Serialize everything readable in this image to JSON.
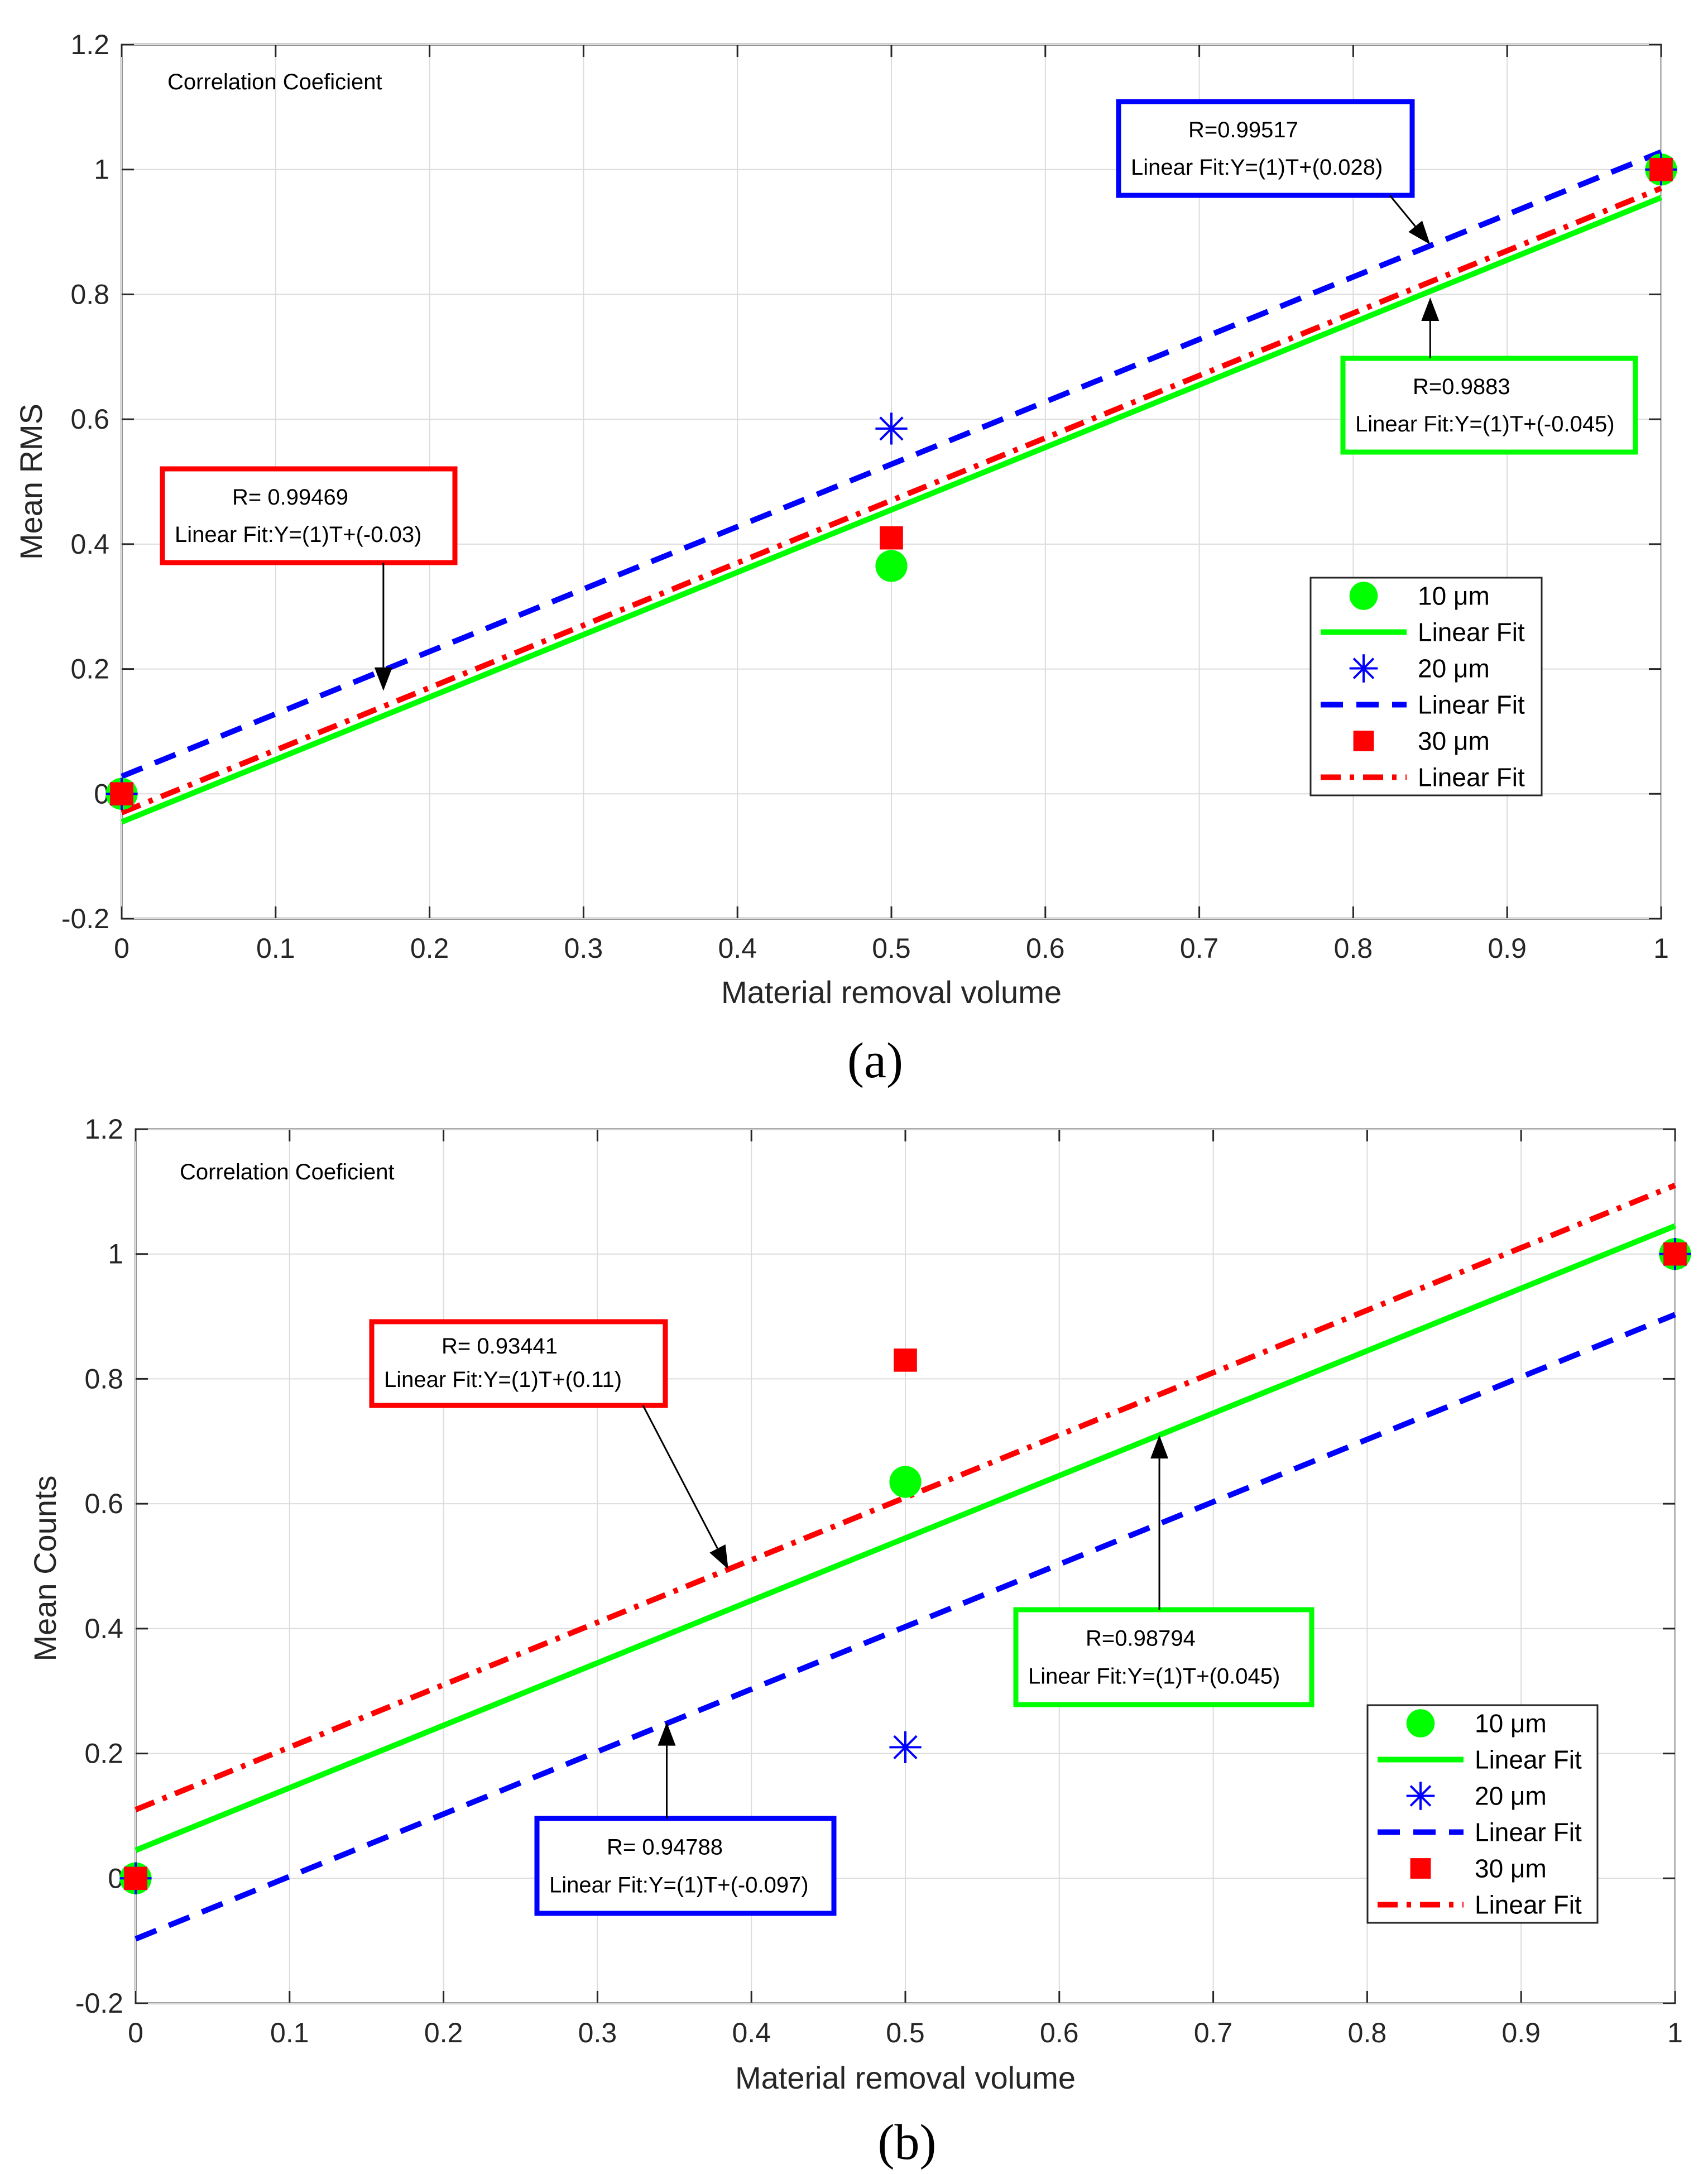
{
  "chart_data": [
    {
      "type": "scatter",
      "caption": "(a)",
      "title": "",
      "xlabel": "Material removal volume",
      "ylabel": "Mean RMS",
      "xlim": [
        0,
        1
      ],
      "ylim": [
        -0.2,
        1.2
      ],
      "grid": true,
      "xticks": [
        "0",
        "0.1",
        "0.2",
        "0.3",
        "0.4",
        "0.5",
        "0.6",
        "0.7",
        "0.8",
        "0.9",
        "1"
      ],
      "yticks": [
        "-0.2",
        "0",
        "0.2",
        "0.4",
        "0.6",
        "0.8",
        "1",
        "1.2"
      ],
      "corner_note": "Correlation Coeficient",
      "series": [
        {
          "name": "10 μm",
          "marker": "circle",
          "color": "#00ff00",
          "x": [
            0,
            0.5,
            1
          ],
          "y": [
            0,
            0.365,
            1
          ]
        },
        {
          "name": "20 μm",
          "marker": "asterisk",
          "color": "#0000ff",
          "x": [
            0,
            0.5,
            1
          ],
          "y": [
            0,
            0.585,
            1
          ]
        },
        {
          "name": "30 μm",
          "marker": "square",
          "color": "#ff0000",
          "x": [
            0,
            0.5,
            1
          ],
          "y": [
            0,
            0.41,
            1
          ]
        }
      ],
      "fits": [
        {
          "name": "Linear Fit",
          "color": "#00ff00",
          "dash": "solid",
          "slope": 1,
          "intercept": -0.045
        },
        {
          "name": "Linear Fit",
          "color": "#0000ff",
          "dash": "dashed",
          "slope": 1,
          "intercept": 0.028
        },
        {
          "name": "Linear Fit",
          "color": "#ff0000",
          "dash": "dashdot",
          "slope": 1,
          "intercept": -0.03
        }
      ],
      "annotations": [
        {
          "color": "#0000ff",
          "r": "R=0.99517",
          "fit": "Linear Fit:Y=(1)T+(0.028)",
          "arrow_to": [
            0.85,
            0.88
          ]
        },
        {
          "color": "#00ff00",
          "r": "R=0.9883",
          "fit": "Linear Fit:Y=(1)T+(-0.045)",
          "arrow_to": [
            0.85,
            0.795
          ]
        },
        {
          "color": "#ff0000",
          "r": "R= 0.99469",
          "fit": "Linear Fit:Y=(1)T+(-0.03)",
          "arrow_to": [
            0.17,
            0.165
          ]
        }
      ],
      "legend": {
        "position": "lower-right",
        "entries": [
          "10 μm",
          "Linear Fit",
          "20 μm",
          "Linear Fit",
          "30 μm",
          "Linear Fit"
        ]
      }
    },
    {
      "type": "scatter",
      "caption": "(b)",
      "title": "",
      "xlabel": "Material removal volume",
      "ylabel": "Mean Counts",
      "xlim": [
        0,
        1
      ],
      "ylim": [
        -0.2,
        1.2
      ],
      "grid": true,
      "xticks": [
        "0",
        "0.1",
        "0.2",
        "0.3",
        "0.4",
        "0.5",
        "0.6",
        "0.7",
        "0.8",
        "0.9",
        "1"
      ],
      "yticks": [
        "-0.2",
        "0",
        "0.2",
        "0.4",
        "0.6",
        "0.8",
        "1",
        "1.2"
      ],
      "corner_note": "Correlation Coeficient",
      "series": [
        {
          "name": "10 μm",
          "marker": "circle",
          "color": "#00ff00",
          "x": [
            0,
            0.5,
            1
          ],
          "y": [
            0,
            0.635,
            1
          ]
        },
        {
          "name": "20 μm",
          "marker": "asterisk",
          "color": "#0000ff",
          "x": [
            0,
            0.5,
            1
          ],
          "y": [
            0,
            0.21,
            1
          ]
        },
        {
          "name": "30 μm",
          "marker": "square",
          "color": "#ff0000",
          "x": [
            0,
            0.5,
            1
          ],
          "y": [
            0,
            0.83,
            1
          ]
        }
      ],
      "fits": [
        {
          "name": "Linear Fit",
          "color": "#00ff00",
          "dash": "solid",
          "slope": 1,
          "intercept": 0.045
        },
        {
          "name": "Linear Fit",
          "color": "#0000ff",
          "dash": "dashed",
          "slope": 1,
          "intercept": -0.097
        },
        {
          "name": "Linear Fit",
          "color": "#ff0000",
          "dash": "dashdot",
          "slope": 1,
          "intercept": 0.11
        }
      ],
      "annotations": [
        {
          "color": "#ff0000",
          "r": "R= 0.93441",
          "fit": "Linear Fit:Y=(1)T+(0.11)",
          "arrow_to": [
            0.385,
            0.495
          ]
        },
        {
          "color": "#00ff00",
          "r": "R=0.98794",
          "fit": "Linear Fit:Y=(1)T+(0.045)",
          "arrow_to": [
            0.665,
            0.71
          ]
        },
        {
          "color": "#0000ff",
          "r": "R= 0.94788",
          "fit": "Linear Fit:Y=(1)T+(-0.097)",
          "arrow_to": [
            0.345,
            0.25
          ]
        }
      ],
      "legend": {
        "position": "lower-right",
        "entries": [
          "10 μm",
          "Linear Fit",
          "20 μm",
          "Linear Fit",
          "30 μm",
          "Linear Fit"
        ]
      }
    }
  ]
}
